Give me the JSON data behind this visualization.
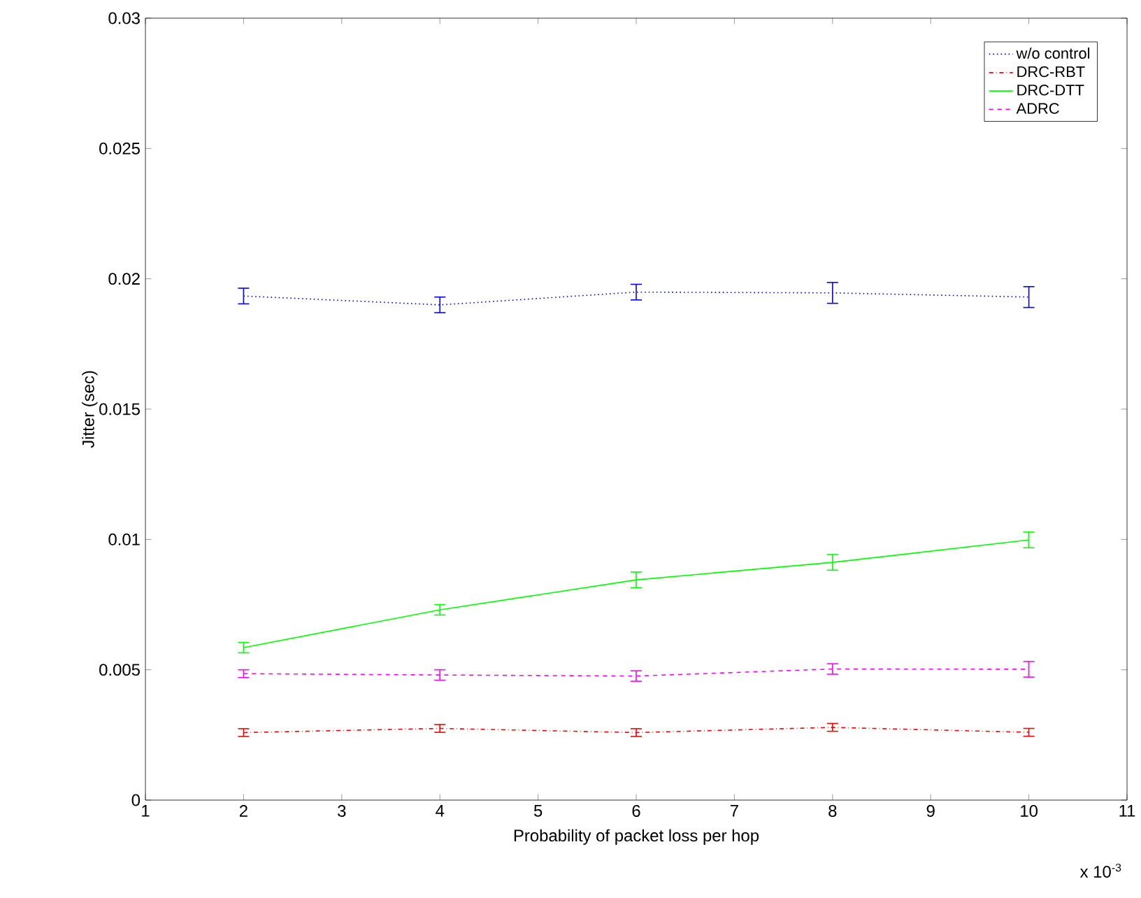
{
  "chart_data": {
    "type": "line",
    "xlabel": "Probability of packet loss per hop",
    "ylabel": "Jitter (sec)",
    "x": [
      2,
      4,
      6,
      8,
      10
    ],
    "xlim": [
      1,
      11
    ],
    "xticks": [
      1,
      2,
      3,
      4,
      5,
      6,
      7,
      8,
      9,
      10,
      11
    ],
    "ylim": [
      0,
      0.03
    ],
    "yticks": [
      0,
      0.005,
      0.01,
      0.015,
      0.02,
      0.025,
      0.03
    ],
    "series": [
      {
        "name": "w/o control",
        "color": "#0000ff",
        "line_style": "dotted",
        "values": [
          0.01934,
          0.019,
          0.01949,
          0.01946,
          0.0193
        ],
        "errors": [
          0.0003,
          0.0003,
          0.0003,
          0.0004,
          0.0004
        ]
      },
      {
        "name": "DRC-RBT",
        "color": "#ff0000",
        "line_style": "dashdot",
        "values": [
          0.00259,
          0.00275,
          0.00259,
          0.00279,
          0.0026
        ],
        "errors": [
          0.00015,
          0.00015,
          0.00015,
          0.00015,
          0.00015
        ]
      },
      {
        "name": "DRC-DTT",
        "color": "#00ff00",
        "line_style": "solid",
        "values": [
          0.00585,
          0.0073,
          0.00845,
          0.00912,
          0.00998
        ],
        "errors": [
          0.0002,
          0.0002,
          0.0003,
          0.0003,
          0.0003
        ]
      },
      {
        "name": "ADRC",
        "color": "#ff00ff",
        "line_style": "dashed",
        "values": [
          0.00485,
          0.0048,
          0.00476,
          0.00503,
          0.00502
        ],
        "errors": [
          0.00015,
          0.0002,
          0.0002,
          0.0002,
          0.0003
        ]
      }
    ],
    "legend": "top right",
    "grid": false,
    "marker": "none",
    "annotations": [
      "x 10$^{-3}$"
    ]
  }
}
